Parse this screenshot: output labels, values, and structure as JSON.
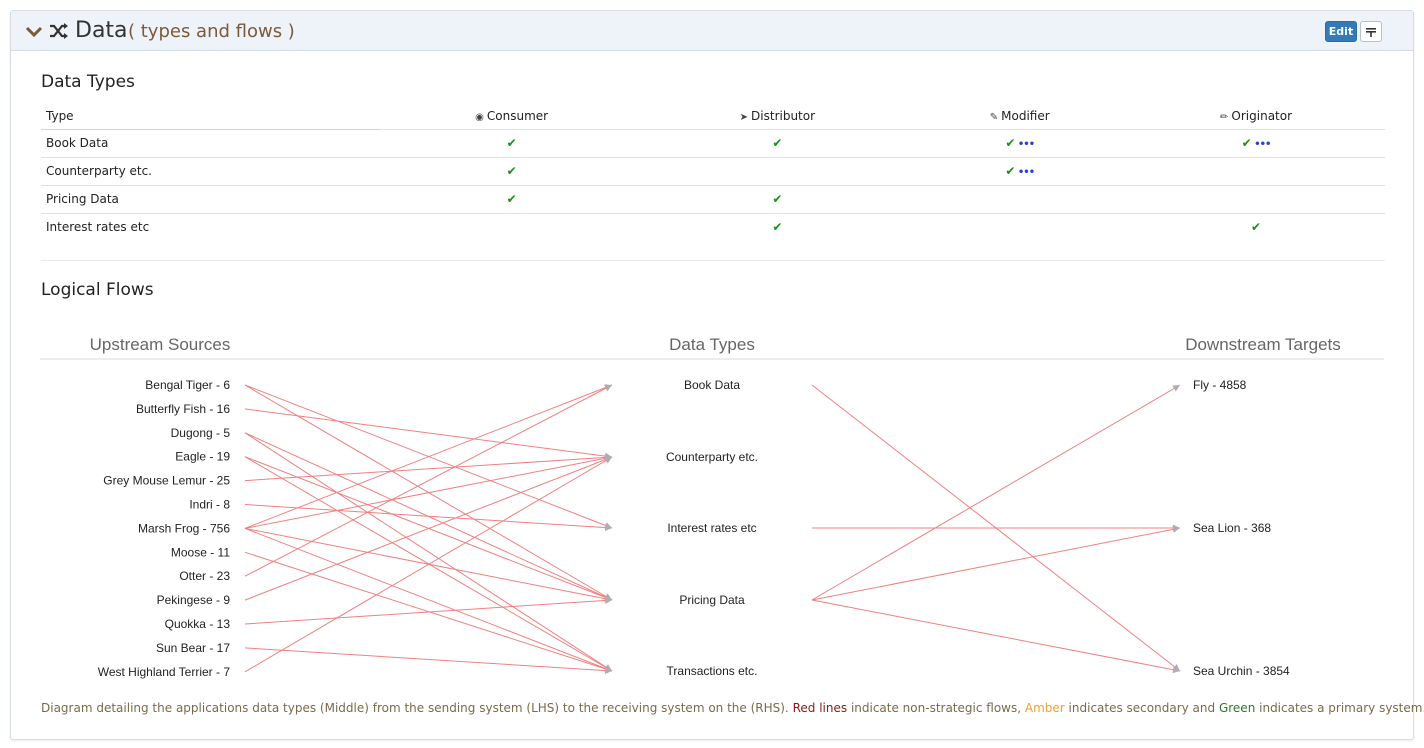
{
  "header": {
    "title": "Data",
    "subtitle": "( types and flows )",
    "edit_label": "Edit"
  },
  "data_types": {
    "title": "Data Types",
    "type_header": "Type",
    "roles": [
      {
        "label": "Consumer",
        "icon": "eye-icon"
      },
      {
        "label": "Distributor",
        "icon": "send-icon"
      },
      {
        "label": "Modifier",
        "icon": "edit-icon"
      },
      {
        "label": "Originator",
        "icon": "pencil-icon"
      }
    ],
    "rows": [
      {
        "type": "Book Data",
        "cells": [
          {
            "check": true,
            "more": false
          },
          {
            "check": true,
            "more": false
          },
          {
            "check": true,
            "more": true
          },
          {
            "check": true,
            "more": true
          }
        ]
      },
      {
        "type": "Counterparty etc.",
        "cells": [
          {
            "check": true,
            "more": false
          },
          {
            "check": false,
            "more": false
          },
          {
            "check": true,
            "more": true
          },
          {
            "check": false,
            "more": false
          }
        ]
      },
      {
        "type": "Pricing Data",
        "cells": [
          {
            "check": true,
            "more": false
          },
          {
            "check": true,
            "more": false
          },
          {
            "check": false,
            "more": false
          },
          {
            "check": false,
            "more": false
          }
        ]
      },
      {
        "type": "Interest rates etc",
        "cells": [
          {
            "check": false,
            "more": false
          },
          {
            "check": true,
            "more": false
          },
          {
            "check": false,
            "more": false
          },
          {
            "check": true,
            "more": false
          }
        ]
      }
    ]
  },
  "logical_flows": {
    "title": "Logical Flows",
    "col_upstream": "Upstream Sources",
    "col_types": "Data Types",
    "col_downstream": "Downstream Targets",
    "sources": [
      "Bengal Tiger - 6",
      "Butterfly Fish - 16",
      "Dugong - 5",
      "Eagle - 19",
      "Grey Mouse Lemur - 25",
      "Indri - 8",
      "Marsh Frog - 756",
      "Moose - 11",
      "Otter - 23",
      "Pekingese - 9",
      "Quokka - 13",
      "Sun Bear - 17",
      "West Highland Terrier - 7"
    ],
    "types": [
      "Book Data",
      "Counterparty etc.",
      "Interest rates etc",
      "Pricing Data",
      "Transactions etc."
    ],
    "targets": [
      "Fly - 4858",
      "Sea Lion - 368",
      "Sea Urchin - 3854"
    ],
    "source_flows": [
      [
        0,
        2
      ],
      [
        0,
        3
      ],
      [
        1,
        1
      ],
      [
        2,
        3
      ],
      [
        2,
        4
      ],
      [
        3,
        3
      ],
      [
        3,
        4
      ],
      [
        4,
        1
      ],
      [
        5,
        2
      ],
      [
        6,
        0
      ],
      [
        6,
        1
      ],
      [
        6,
        3
      ],
      [
        6,
        4
      ],
      [
        7,
        4
      ],
      [
        8,
        0
      ],
      [
        9,
        1
      ],
      [
        10,
        3
      ],
      [
        11,
        4
      ],
      [
        12,
        1
      ]
    ],
    "target_flows": [
      [
        0,
        2
      ],
      [
        2,
        1
      ],
      [
        3,
        0
      ],
      [
        3,
        1
      ],
      [
        3,
        2
      ]
    ],
    "line_color": "#f08080"
  },
  "footnote": {
    "before": "Diagram detailing the applications data types (Middle) from the sending system (LHS) to the receiving system on the (RHS).",
    "red": "Red lines",
    "mid1": "indicate non-strategic flows,",
    "amber": "Amber",
    "mid2": "indicates secondary and",
    "green": "Green",
    "after": "indicates a primary system."
  }
}
